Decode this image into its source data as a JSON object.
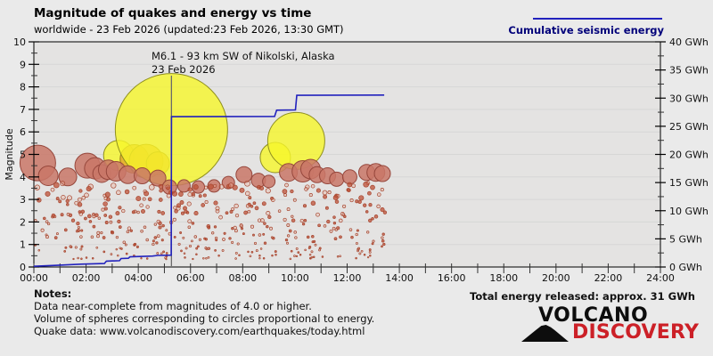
{
  "header": {
    "title": "Magnitude of quakes and energy vs time",
    "subtitle": "worldwide - 23 Feb 2026 (updated:23 Feb 2026, 13:30 GMT)"
  },
  "legend": {
    "label": "Cumulative seismic energy",
    "color": "#2222bd"
  },
  "notes": {
    "heading": "Notes:",
    "lines": [
      "Data near-complete from magnitudes of 4.0 or higher.",
      "Volume of spheres corresponding to circles proportional to energy.",
      "Quake data: www.volcanodiscovery.com/earthquakes/today.html"
    ]
  },
  "total_energy_label": "Total energy released: approx. 31 GWh",
  "logo": {
    "line1": "VOLCANO",
    "line2": "DISCOVERY"
  },
  "chart_data": {
    "type": "scatter",
    "title": "Magnitude of quakes and energy vs time",
    "grid": "horizontal-only",
    "x_axis": {
      "range_hours": [
        0,
        24
      ],
      "minor_tick_hours": 1,
      "tick_hours": [
        0,
        2,
        4,
        6,
        8,
        10,
        12,
        14,
        16,
        18,
        20,
        22,
        24
      ],
      "tick_labels": [
        "00:00",
        "02:00",
        "04:00",
        "06:00",
        "08:00",
        "10:00",
        "12:00",
        "14:00",
        "16:00",
        "18:00",
        "20:00",
        "22:00",
        "24:00"
      ]
    },
    "y_left_axis": {
      "label": "Magnitude",
      "range": [
        0,
        10
      ],
      "tick_values": [
        0,
        1,
        2,
        3,
        4,
        5,
        6,
        7,
        8,
        9,
        10
      ],
      "tick_labels": [
        "0",
        "1",
        "2",
        "3",
        "4",
        "5",
        "6",
        "7",
        "8",
        "9",
        "10"
      ]
    },
    "y_right_axis": {
      "range_gwh": [
        0,
        40
      ],
      "tick_values": [
        0,
        5,
        10,
        15,
        20,
        25,
        30,
        35,
        40
      ],
      "tick_labels": [
        "0 GWh",
        "5 GWh",
        "10 GWh",
        "15 GWh",
        "20 GWh",
        "25 GWh",
        "30 GWh",
        "35 GWh",
        "40 GWh"
      ]
    },
    "annotation": {
      "lines": [
        "M6.1 - 93 km SW of Nikolski, Alaska",
        "23 Feb 2026"
      ],
      "t_hours": 5.27
    },
    "notable_quakes": [
      {
        "t": 3.25,
        "mag": 4.95,
        "r": 17,
        "color": "yellow"
      },
      {
        "t": 3.85,
        "mag": 4.8,
        "r": 16,
        "color": "orange"
      },
      {
        "t": 4.3,
        "mag": 4.7,
        "r": 19,
        "color": "orange"
      },
      {
        "t": 4.75,
        "mag": 4.6,
        "r": 13,
        "color": "orange"
      },
      {
        "t": 9.25,
        "mag": 4.86,
        "r": 17,
        "color": "yellow"
      },
      {
        "t": 10.05,
        "mag": 5.6,
        "r": 32,
        "color": "yellow"
      },
      {
        "t": 5.27,
        "mag": 6.1,
        "r": 63,
        "color": "yellow"
      },
      {
        "t": 0.15,
        "mag": 4.62,
        "r": 20,
        "color": "red"
      },
      {
        "t": 0.55,
        "mag": 4.05,
        "r": 11,
        "color": "red"
      },
      {
        "t": 1.3,
        "mag": 4.0,
        "r": 10,
        "color": "red"
      },
      {
        "t": 2.05,
        "mag": 4.5,
        "r": 14,
        "color": "red"
      },
      {
        "t": 2.35,
        "mag": 4.38,
        "r": 12,
        "color": "red"
      },
      {
        "t": 2.6,
        "mag": 4.15,
        "r": 10,
        "color": "red"
      },
      {
        "t": 2.85,
        "mag": 4.32,
        "r": 11,
        "color": "red"
      },
      {
        "t": 3.15,
        "mag": 4.25,
        "r": 11,
        "color": "red"
      },
      {
        "t": 3.6,
        "mag": 4.1,
        "r": 10,
        "color": "red"
      },
      {
        "t": 4.15,
        "mag": 4.05,
        "r": 9,
        "color": "red"
      },
      {
        "t": 4.75,
        "mag": 3.95,
        "r": 9,
        "color": "red"
      },
      {
        "t": 5.2,
        "mag": 3.55,
        "r": 8,
        "color": "red"
      },
      {
        "t": 5.75,
        "mag": 3.6,
        "r": 7,
        "color": "red"
      },
      {
        "t": 6.3,
        "mag": 3.55,
        "r": 7,
        "color": "red"
      },
      {
        "t": 6.9,
        "mag": 3.6,
        "r": 7,
        "color": "red"
      },
      {
        "t": 7.45,
        "mag": 3.75,
        "r": 7,
        "color": "red"
      },
      {
        "t": 8.05,
        "mag": 4.1,
        "r": 9,
        "color": "red"
      },
      {
        "t": 8.6,
        "mag": 3.85,
        "r": 8,
        "color": "red"
      },
      {
        "t": 9.0,
        "mag": 3.8,
        "r": 7,
        "color": "red"
      },
      {
        "t": 9.75,
        "mag": 4.2,
        "r": 10,
        "color": "red"
      },
      {
        "t": 10.3,
        "mag": 4.25,
        "r": 12,
        "color": "red"
      },
      {
        "t": 10.6,
        "mag": 4.35,
        "r": 11,
        "color": "red"
      },
      {
        "t": 10.85,
        "mag": 4.1,
        "r": 9,
        "color": "red"
      },
      {
        "t": 11.25,
        "mag": 4.05,
        "r": 9,
        "color": "red"
      },
      {
        "t": 11.6,
        "mag": 3.9,
        "r": 8,
        "color": "red"
      },
      {
        "t": 12.1,
        "mag": 4.0,
        "r": 8,
        "color": "red"
      },
      {
        "t": 12.75,
        "mag": 4.2,
        "r": 9,
        "color": "red"
      },
      {
        "t": 13.1,
        "mag": 4.2,
        "r": 10,
        "color": "red"
      },
      {
        "t": 13.35,
        "mag": 4.15,
        "r": 9,
        "color": "red"
      }
    ],
    "energy_line_gwh": [
      [
        0,
        0.12
      ],
      [
        0.9,
        0.3
      ],
      [
        1.8,
        0.5
      ],
      [
        2.7,
        0.62
      ],
      [
        2.78,
        1.05
      ],
      [
        3.28,
        1.12
      ],
      [
        3.34,
        1.5
      ],
      [
        3.62,
        1.55
      ],
      [
        3.68,
        1.8
      ],
      [
        4.55,
        1.95
      ],
      [
        4.75,
        2.05
      ],
      [
        5.26,
        2.1
      ],
      [
        5.27,
        26.7
      ],
      [
        9.22,
        26.75
      ],
      [
        9.3,
        27.85
      ],
      [
        10.02,
        27.9
      ],
      [
        10.07,
        30.5
      ],
      [
        13.42,
        30.55
      ]
    ],
    "total_energy_gwh_approx": 31,
    "background_scatter": {
      "count": 420,
      "seed": 9,
      "t_range": [
        0.05,
        13.45
      ],
      "mag_range": [
        0.35,
        3.75
      ],
      "description": "hundreds of minor quakes below magnitude ~3.8"
    },
    "colors": {
      "plot_bg": "#e4e3e2",
      "grid": "#d6d6d6",
      "axis": "#000000",
      "energy_line": "#2222bd",
      "annotation_line": "#6b6b6b",
      "bubble_yellow_fill": "rgba(246,246,42,0.80)",
      "bubble_yellow_stroke": "#8f8f1f",
      "bubble_orange_fill": "rgba(226,164,44,0.80)",
      "bubble_orange_stroke": "#9a7a1a",
      "bubble_red_fill": "rgba(201,119,103,0.85)",
      "bubble_red_stroke": "#96473c",
      "dot_fill": "rgba(190,80,55,0.75)",
      "dot_hollow_fill": "rgba(235,170,150,0.35)",
      "dot_stroke": "#a6462f"
    }
  }
}
